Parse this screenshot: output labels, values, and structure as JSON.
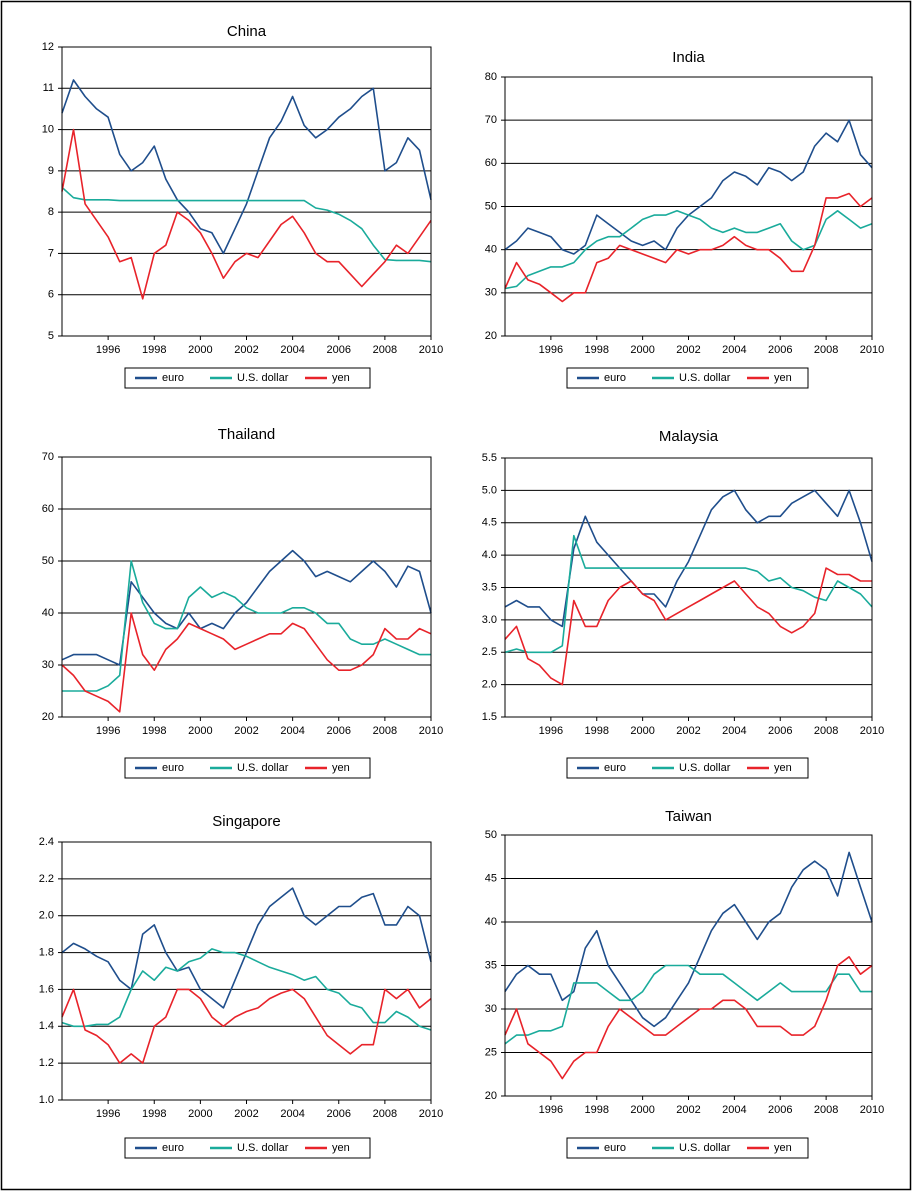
{
  "chart_data": [
    {
      "type": "line",
      "title": "China",
      "x": [
        1994,
        1994.5,
        1995,
        1995.5,
        1996,
        1996.5,
        1997,
        1997.5,
        1998,
        1998.5,
        1999,
        1999.5,
        2000,
        2000.5,
        2001,
        2001.5,
        2002,
        2002.5,
        2003,
        2003.5,
        2004,
        2004.5,
        2005,
        2005.5,
        2006,
        2006.5,
        2007,
        2007.5,
        2008,
        2008.5,
        2009,
        2009.5,
        2010
      ],
      "xlim": [
        1994,
        2010
      ],
      "xticks": [
        1996,
        1998,
        2000,
        2002,
        2004,
        2006,
        2008,
        2010
      ],
      "ylim": [
        5,
        12
      ],
      "yticks": [
        5,
        6,
        7,
        8,
        9,
        10,
        11,
        12
      ],
      "grid": true,
      "series": [
        {
          "name": "euro",
          "color": "#1f4e8c",
          "values": [
            10.4,
            11.2,
            10.8,
            10.5,
            10.3,
            9.4,
            9.0,
            9.2,
            9.6,
            8.8,
            8.3,
            8.0,
            7.6,
            7.5,
            7.0,
            7.6,
            8.2,
            9.0,
            9.8,
            10.2,
            10.8,
            10.1,
            9.8,
            10.0,
            10.3,
            10.5,
            10.8,
            11.0,
            9.0,
            9.2,
            9.8,
            9.5,
            8.3
          ]
        },
        {
          "name": "U.S. dollar",
          "color": "#1aab9b",
          "values": [
            8.6,
            8.35,
            8.3,
            8.3,
            8.3,
            8.28,
            8.28,
            8.28,
            8.28,
            8.28,
            8.28,
            8.28,
            8.28,
            8.28,
            8.28,
            8.28,
            8.28,
            8.28,
            8.28,
            8.28,
            8.28,
            8.28,
            8.1,
            8.05,
            7.95,
            7.8,
            7.6,
            7.2,
            6.85,
            6.83,
            6.83,
            6.83,
            6.8
          ]
        },
        {
          "name": "yen",
          "color": "#e8232a",
          "values": [
            8.5,
            10.0,
            8.2,
            7.8,
            7.4,
            6.8,
            6.9,
            5.9,
            7.0,
            7.2,
            8.0,
            7.8,
            7.5,
            7.0,
            6.4,
            6.8,
            7.0,
            6.9,
            7.3,
            7.7,
            7.9,
            7.5,
            7.0,
            6.8,
            6.8,
            6.5,
            6.2,
            6.5,
            6.8,
            7.2,
            7.0,
            7.4,
            7.8
          ]
        }
      ]
    },
    {
      "type": "line",
      "title": "India",
      "x": [
        1994,
        1994.5,
        1995,
        1995.5,
        1996,
        1996.5,
        1997,
        1997.5,
        1998,
        1998.5,
        1999,
        1999.5,
        2000,
        2000.5,
        2001,
        2001.5,
        2002,
        2002.5,
        2003,
        2003.5,
        2004,
        2004.5,
        2005,
        2005.5,
        2006,
        2006.5,
        2007,
        2007.5,
        2008,
        2008.5,
        2009,
        2009.5,
        2010
      ],
      "xlim": [
        1994,
        2010
      ],
      "xticks": [
        1996,
        1998,
        2000,
        2002,
        2004,
        2006,
        2008,
        2010
      ],
      "ylim": [
        20,
        80
      ],
      "yticks": [
        20,
        30,
        40,
        50,
        60,
        70,
        80
      ],
      "grid": true,
      "series": [
        {
          "name": "euro",
          "color": "#1f4e8c",
          "values": [
            40,
            42,
            45,
            44,
            43,
            40,
            39,
            41,
            48,
            46,
            44,
            42,
            41,
            42,
            40,
            45,
            48,
            50,
            52,
            56,
            58,
            57,
            55,
            59,
            58,
            56,
            58,
            64,
            67,
            65,
            70,
            62,
            59
          ]
        },
        {
          "name": "U.S. dollar",
          "color": "#1aab9b",
          "values": [
            31,
            31.5,
            34,
            35,
            36,
            36,
            37,
            40,
            42,
            43,
            43,
            45,
            47,
            48,
            48,
            49,
            48,
            47,
            45,
            44,
            45,
            44,
            44,
            45,
            46,
            42,
            40,
            41,
            47,
            49,
            47,
            45,
            46
          ]
        },
        {
          "name": "yen",
          "color": "#e8232a",
          "values": [
            31,
            37,
            33,
            32,
            30,
            28,
            30,
            30,
            37,
            38,
            41,
            40,
            39,
            38,
            37,
            40,
            39,
            40,
            40,
            41,
            43,
            41,
            40,
            40,
            38,
            35,
            35,
            41,
            52,
            52,
            53,
            50,
            52
          ]
        }
      ]
    },
    {
      "type": "line",
      "title": "Thailand",
      "x": [
        1994,
        1994.5,
        1995,
        1995.5,
        1996,
        1996.5,
        1997,
        1997.5,
        1998,
        1998.5,
        1999,
        1999.5,
        2000,
        2000.5,
        2001,
        2001.5,
        2002,
        2002.5,
        2003,
        2003.5,
        2004,
        2004.5,
        2005,
        2005.5,
        2006,
        2006.5,
        2007,
        2007.5,
        2008,
        2008.5,
        2009,
        2009.5,
        2010
      ],
      "xlim": [
        1994,
        2010
      ],
      "xticks": [
        1996,
        1998,
        2000,
        2002,
        2004,
        2006,
        2008,
        2010
      ],
      "ylim": [
        20,
        70
      ],
      "yticks": [
        20,
        30,
        40,
        50,
        60,
        70
      ],
      "grid": true,
      "series": [
        {
          "name": "euro",
          "color": "#1f4e8c",
          "values": [
            31,
            32,
            32,
            32,
            31,
            30,
            46,
            43,
            40,
            38,
            37,
            40,
            37,
            38,
            37,
            40,
            42,
            45,
            48,
            50,
            52,
            50,
            47,
            48,
            47,
            46,
            48,
            50,
            48,
            45,
            49,
            48,
            40
          ]
        },
        {
          "name": "U.S. dollar",
          "color": "#1aab9b",
          "values": [
            25,
            25,
            25,
            25,
            26,
            28,
            50,
            42,
            38,
            37,
            37,
            43,
            45,
            43,
            44,
            43,
            41,
            40,
            40,
            40,
            41,
            41,
            40,
            38,
            38,
            35,
            34,
            34,
            35,
            34,
            33,
            32,
            32
          ]
        },
        {
          "name": "yen",
          "color": "#e8232a",
          "values": [
            30,
            28,
            25,
            24,
            23,
            21,
            40,
            32,
            29,
            33,
            35,
            38,
            37,
            36,
            35,
            33,
            34,
            35,
            36,
            36,
            38,
            37,
            34,
            31,
            29,
            29,
            30,
            32,
            37,
            35,
            35,
            37,
            36
          ]
        }
      ]
    },
    {
      "type": "line",
      "title": "Malaysia",
      "x": [
        1994,
        1994.5,
        1995,
        1995.5,
        1996,
        1996.5,
        1997,
        1997.5,
        1998,
        1998.5,
        1999,
        1999.5,
        2000,
        2000.5,
        2001,
        2001.5,
        2002,
        2002.5,
        2003,
        2003.5,
        2004,
        2004.5,
        2005,
        2005.5,
        2006,
        2006.5,
        2007,
        2007.5,
        2008,
        2008.5,
        2009,
        2009.5,
        2010
      ],
      "xlim": [
        1994,
        2010
      ],
      "xticks": [
        1996,
        1998,
        2000,
        2002,
        2004,
        2006,
        2008,
        2010
      ],
      "ylim": [
        1.5,
        5.5
      ],
      "yticks": [
        1.5,
        {
          "value": 2,
          "label": "2.0"
        },
        2.5,
        {
          "value": 3,
          "label": "3.0"
        },
        3.5,
        {
          "value": 4,
          "label": "4.0"
        },
        4.5,
        {
          "value": 5,
          "label": "5.0"
        },
        5.5
      ],
      "grid": true,
      "series": [
        {
          "name": "euro",
          "color": "#1f4e8c",
          "values": [
            3.2,
            3.3,
            3.2,
            3.2,
            3.0,
            2.9,
            4.1,
            4.6,
            4.2,
            4.0,
            3.8,
            3.6,
            3.4,
            3.4,
            3.2,
            3.6,
            3.9,
            4.3,
            4.7,
            4.9,
            5.0,
            4.7,
            4.5,
            4.6,
            4.6,
            4.8,
            4.9,
            5.0,
            4.8,
            4.6,
            5.0,
            4.5,
            3.9
          ]
        },
        {
          "name": "U.S. dollar",
          "color": "#1aab9b",
          "values": [
            2.5,
            2.55,
            2.5,
            2.5,
            2.5,
            2.6,
            4.3,
            3.8,
            3.8,
            3.8,
            3.8,
            3.8,
            3.8,
            3.8,
            3.8,
            3.8,
            3.8,
            3.8,
            3.8,
            3.8,
            3.8,
            3.8,
            3.75,
            3.6,
            3.65,
            3.5,
            3.45,
            3.35,
            3.3,
            3.6,
            3.5,
            3.4,
            3.2
          ]
        },
        {
          "name": "yen",
          "color": "#e8232a",
          "values": [
            2.7,
            2.9,
            2.4,
            2.3,
            2.1,
            2.0,
            3.3,
            2.9,
            2.9,
            3.3,
            3.5,
            3.6,
            3.4,
            3.3,
            3.0,
            3.1,
            3.2,
            3.3,
            3.4,
            3.5,
            3.6,
            3.4,
            3.2,
            3.1,
            2.9,
            2.8,
            2.9,
            3.1,
            3.8,
            3.7,
            3.7,
            3.6,
            3.6
          ]
        }
      ]
    },
    {
      "type": "line",
      "title": "Singapore",
      "x": [
        1994,
        1994.5,
        1995,
        1995.5,
        1996,
        1996.5,
        1997,
        1997.5,
        1998,
        1998.5,
        1999,
        1999.5,
        2000,
        2000.5,
        2001,
        2001.5,
        2002,
        2002.5,
        2003,
        2003.5,
        2004,
        2004.5,
        2005,
        2005.5,
        2006,
        2006.5,
        2007,
        2007.5,
        2008,
        2008.5,
        2009,
        2009.5,
        2010
      ],
      "xlim": [
        1994,
        2010
      ],
      "xticks": [
        1996,
        1998,
        2000,
        2002,
        2004,
        2006,
        2008,
        2010
      ],
      "ylim": [
        1.0,
        2.4
      ],
      "yticks": [
        {
          "value": 1,
          "label": "1.0"
        },
        1.2,
        1.4,
        1.6,
        1.8,
        {
          "value": 2,
          "label": "2.0"
        },
        2.2,
        2.4
      ],
      "grid": true,
      "series": [
        {
          "name": "euro",
          "color": "#1f4e8c",
          "values": [
            1.8,
            1.85,
            1.82,
            1.78,
            1.75,
            1.65,
            1.6,
            1.9,
            1.95,
            1.8,
            1.7,
            1.72,
            1.6,
            1.55,
            1.5,
            1.65,
            1.8,
            1.95,
            2.05,
            2.1,
            2.15,
            2.0,
            1.95,
            2.0,
            2.05,
            2.05,
            2.1,
            2.12,
            1.95,
            1.95,
            2.05,
            2.0,
            1.75
          ]
        },
        {
          "name": "U.S. dollar",
          "color": "#1aab9b",
          "values": [
            1.42,
            1.4,
            1.4,
            1.41,
            1.41,
            1.45,
            1.6,
            1.7,
            1.65,
            1.72,
            1.7,
            1.75,
            1.77,
            1.82,
            1.8,
            1.8,
            1.78,
            1.75,
            1.72,
            1.7,
            1.68,
            1.65,
            1.67,
            1.6,
            1.58,
            1.52,
            1.5,
            1.42,
            1.42,
            1.48,
            1.45,
            1.4,
            1.38
          ]
        },
        {
          "name": "yen",
          "color": "#e8232a",
          "values": [
            1.45,
            1.6,
            1.38,
            1.35,
            1.3,
            1.2,
            1.25,
            1.2,
            1.4,
            1.45,
            1.6,
            1.6,
            1.55,
            1.45,
            1.4,
            1.45,
            1.48,
            1.5,
            1.55,
            1.58,
            1.6,
            1.55,
            1.45,
            1.35,
            1.3,
            1.25,
            1.3,
            1.3,
            1.6,
            1.55,
            1.6,
            1.5,
            1.55
          ]
        }
      ]
    },
    {
      "type": "line",
      "title": "Taiwan",
      "x": [
        1994,
        1994.5,
        1995,
        1995.5,
        1996,
        1996.5,
        1997,
        1997.5,
        1998,
        1998.5,
        1999,
        1999.5,
        2000,
        2000.5,
        2001,
        2001.5,
        2002,
        2002.5,
        2003,
        2003.5,
        2004,
        2004.5,
        2005,
        2005.5,
        2006,
        2006.5,
        2007,
        2007.5,
        2008,
        2008.5,
        2009,
        2009.5,
        2010
      ],
      "xlim": [
        1994,
        2010
      ],
      "xticks": [
        1996,
        1998,
        2000,
        2002,
        2004,
        2006,
        2008,
        2010
      ],
      "ylim": [
        20,
        50
      ],
      "yticks": [
        20,
        25,
        30,
        35,
        40,
        45,
        50
      ],
      "grid": true,
      "series": [
        {
          "name": "euro",
          "color": "#1f4e8c",
          "values": [
            32,
            34,
            35,
            34,
            34,
            31,
            32,
            37,
            39,
            35,
            33,
            31,
            29,
            28,
            29,
            31,
            33,
            36,
            39,
            41,
            42,
            40,
            38,
            40,
            41,
            44,
            46,
            47,
            46,
            43,
            48,
            44,
            40
          ]
        },
        {
          "name": "U.S. dollar",
          "color": "#1aab9b",
          "values": [
            26,
            27,
            27,
            27.5,
            27.5,
            28,
            33,
            33,
            33,
            32,
            31,
            31,
            32,
            34,
            35,
            35,
            35,
            34,
            34,
            34,
            33,
            32,
            31,
            32,
            33,
            32,
            32,
            32,
            32,
            34,
            34,
            32,
            32
          ]
        },
        {
          "name": "yen",
          "color": "#e8232a",
          "values": [
            27,
            30,
            26,
            25,
            24,
            22,
            24,
            25,
            25,
            28,
            30,
            29,
            28,
            27,
            27,
            28,
            29,
            30,
            30,
            31,
            31,
            30,
            28,
            28,
            28,
            27,
            27,
            28,
            31,
            35,
            36,
            34,
            35
          ]
        }
      ]
    }
  ]
}
